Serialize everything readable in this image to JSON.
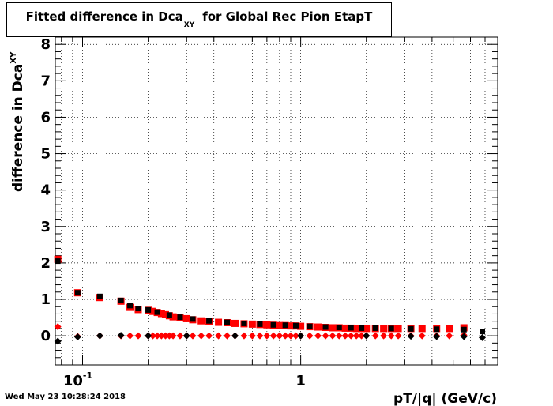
{
  "chart_data": {
    "type": "scatter",
    "title_main": "Fitted difference in Dca",
    "title_sub": "XY",
    "title_rest": "for Global Rec Pion EtapT",
    "xlabel": "pT/|q| (GeV/c)",
    "ylabel_main": "difference in Dca",
    "ylabel_sub": "XY",
    "x_scale": "log",
    "xlim": [
      0.075,
      8.0
    ],
    "ylim": [
      -0.8,
      8.2
    ],
    "grid": true,
    "y_ticks": [
      "0",
      "1",
      "2",
      "3",
      "4",
      "5",
      "6",
      "7",
      "8"
    ],
    "x_ticks": [
      {
        "value": 0.1,
        "base": "10",
        "exp": "-1"
      },
      {
        "value": 1,
        "base": "1",
        "exp": ""
      }
    ],
    "series": [
      {
        "color": "#ff0000",
        "marker": "square",
        "x": [
          0.077,
          0.095,
          0.12,
          0.15,
          0.165,
          0.18,
          0.2,
          0.21,
          0.22,
          0.23,
          0.24,
          0.25,
          0.26,
          0.28,
          0.3,
          0.32,
          0.35,
          0.38,
          0.42,
          0.46,
          0.5,
          0.55,
          0.6,
          0.65,
          0.7,
          0.75,
          0.8,
          0.85,
          0.9,
          0.95,
          1.0,
          1.1,
          1.2,
          1.3,
          1.4,
          1.5,
          1.6,
          1.7,
          1.8,
          1.9,
          2.0,
          2.2,
          2.4,
          2.6,
          2.8,
          3.2,
          3.6,
          4.2,
          4.8,
          5.6
        ],
        "y": [
          2.1,
          1.18,
          1.05,
          0.95,
          0.78,
          0.72,
          0.7,
          0.67,
          0.64,
          0.61,
          0.58,
          0.55,
          0.52,
          0.5,
          0.47,
          0.44,
          0.41,
          0.39,
          0.37,
          0.36,
          0.34,
          0.33,
          0.32,
          0.31,
          0.3,
          0.29,
          0.28,
          0.28,
          0.27,
          0.27,
          0.26,
          0.25,
          0.24,
          0.23,
          0.22,
          0.22,
          0.21,
          0.21,
          0.2,
          0.2,
          0.2,
          0.2,
          0.2,
          0.2,
          0.2,
          0.2,
          0.2,
          0.2,
          0.2,
          0.22
        ]
      },
      {
        "color": "#ff0000",
        "marker": "diamond",
        "x": [
          0.077,
          0.095,
          0.12,
          0.15,
          0.165,
          0.18,
          0.2,
          0.21,
          0.22,
          0.23,
          0.24,
          0.25,
          0.26,
          0.28,
          0.3,
          0.32,
          0.35,
          0.38,
          0.42,
          0.46,
          0.5,
          0.55,
          0.6,
          0.65,
          0.7,
          0.75,
          0.8,
          0.85,
          0.9,
          0.95,
          1.0,
          1.1,
          1.2,
          1.3,
          1.4,
          1.5,
          1.6,
          1.7,
          1.8,
          1.9,
          2.0,
          2.2,
          2.4,
          2.6,
          2.8,
          3.2,
          3.6,
          4.2,
          4.8,
          5.6
        ],
        "y": [
          0.25,
          -0.02,
          0.0,
          0.0,
          0.0,
          0.0,
          0.0,
          0.0,
          0.0,
          0.0,
          0.0,
          0.0,
          0.0,
          0.0,
          0.0,
          0.0,
          0.0,
          0.0,
          0.0,
          0.0,
          0.0,
          0.0,
          0.0,
          0.0,
          0.0,
          0.0,
          0.0,
          0.0,
          0.0,
          0.0,
          0.0,
          0.0,
          0.0,
          0.0,
          0.0,
          0.0,
          0.0,
          0.0,
          0.0,
          0.0,
          0.0,
          0.0,
          0.0,
          0.0,
          0.0,
          0.0,
          0.0,
          0.0,
          0.0,
          0.02
        ]
      },
      {
        "color": "#000000",
        "marker": "square",
        "x": [
          0.077,
          0.095,
          0.12,
          0.15,
          0.165,
          0.18,
          0.2,
          0.22,
          0.25,
          0.28,
          0.32,
          0.38,
          0.46,
          0.55,
          0.65,
          0.75,
          0.85,
          0.95,
          1.1,
          1.3,
          1.5,
          1.7,
          1.9,
          2.2,
          2.6,
          3.2,
          4.2,
          5.6,
          6.8
        ],
        "y": [
          2.05,
          1.18,
          1.08,
          0.97,
          0.83,
          0.75,
          0.71,
          0.65,
          0.57,
          0.51,
          0.46,
          0.41,
          0.37,
          0.34,
          0.32,
          0.3,
          0.29,
          0.28,
          0.26,
          0.24,
          0.23,
          0.22,
          0.21,
          0.21,
          0.2,
          0.19,
          0.18,
          0.17,
          0.12
        ]
      },
      {
        "color": "#000000",
        "marker": "diamond",
        "x": [
          0.077,
          0.095,
          0.12,
          0.15,
          0.2,
          0.3,
          0.5,
          1.0,
          2.0,
          3.2,
          4.2,
          5.6,
          6.8
        ],
        "y": [
          -0.15,
          -0.03,
          0.0,
          0.01,
          0.0,
          0.0,
          0.0,
          0.0,
          0.0,
          -0.01,
          -0.02,
          -0.02,
          -0.05
        ]
      }
    ]
  },
  "footer": {
    "timestamp": "Wed May 23 10:28:24 2018"
  }
}
